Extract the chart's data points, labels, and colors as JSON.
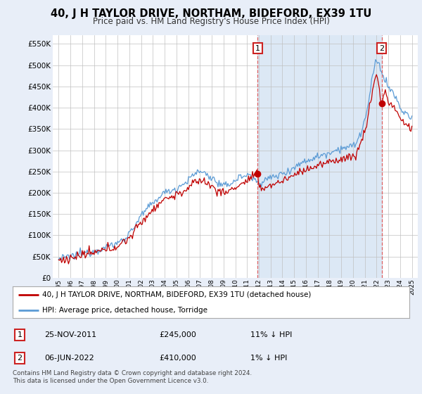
{
  "title": "40, J H TAYLOR DRIVE, NORTHAM, BIDEFORD, EX39 1TU",
  "subtitle": "Price paid vs. HM Land Registry's House Price Index (HPI)",
  "ylim": [
    0,
    570000
  ],
  "yticks": [
    0,
    50000,
    100000,
    150000,
    200000,
    250000,
    300000,
    350000,
    400000,
    450000,
    500000,
    550000
  ],
  "ytick_labels": [
    "£0",
    "£50K",
    "£100K",
    "£150K",
    "£200K",
    "£250K",
    "£300K",
    "£350K",
    "£400K",
    "£450K",
    "£500K",
    "£550K"
  ],
  "hpi_color": "#5b9bd5",
  "price_color": "#c00000",
  "sale1_date": 2011.91,
  "sale1_price": 245000,
  "sale2_date": 2022.43,
  "sale2_price": 410000,
  "legend_label_price": "40, J H TAYLOR DRIVE, NORTHAM, BIDEFORD, EX39 1TU (detached house)",
  "legend_label_hpi": "HPI: Average price, detached house, Torridge",
  "note1_label": "1",
  "note1_date": "25-NOV-2011",
  "note1_price": "£245,000",
  "note1_hpi": "11% ↓ HPI",
  "note2_label": "2",
  "note2_date": "06-JUN-2022",
  "note2_price": "£410,000",
  "note2_hpi": "1% ↓ HPI",
  "footer": "Contains HM Land Registry data © Crown copyright and database right 2024.\nThis data is licensed under the Open Government Licence v3.0.",
  "background_color": "#e8eef8",
  "plot_bg_color": "#ffffff",
  "shade_color": "#dce8f5",
  "grid_color": "#c0c0c0",
  "vline_color": "#e06060",
  "title_fontsize": 10.5,
  "subtitle_fontsize": 8.5
}
